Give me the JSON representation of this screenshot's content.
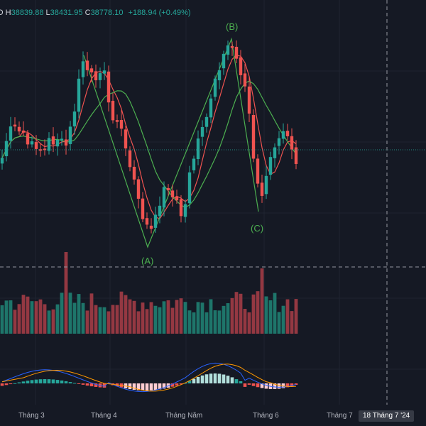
{
  "ohlc": {
    "o_label": "O",
    "o_value": "",
    "h_label": "H",
    "h_value": "38839.88",
    "l_label": "L",
    "l_value": "38431.95",
    "c_label": "C",
    "c_value": "38778.10",
    "change": "+188.94 (+0.49%)"
  },
  "wave_labels": {
    "a": "(A)",
    "b": "(B)",
    "c": "(C)"
  },
  "x_axis": {
    "months": [
      "Tháng 3",
      "Tháng 4",
      "Tháng Năm",
      "Tháng 6",
      "Tháng 7"
    ],
    "cursor_date": "18 Tháng 7 '24"
  },
  "colors": {
    "background": "#151924",
    "up": "#26a69a",
    "down": "#ef5350",
    "ma_fast": "#ef5350",
    "ma_slow": "#4caf50",
    "wave": "#4caf50",
    "macd_line": "#2962ff",
    "signal_line": "#ff9800"
  }
}
